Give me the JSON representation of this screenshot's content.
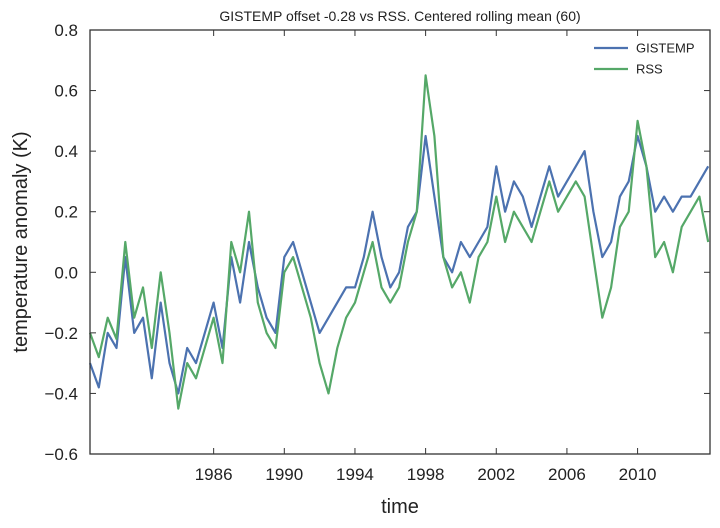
{
  "chart_data": {
    "type": "line",
    "title": "GISTEMP offset -0.28 vs RSS. Centered rolling mean (60)",
    "xlabel": "time",
    "ylabel": "temperature anomaly (K)",
    "xlim": [
      1979.0,
      2014.1
    ],
    "ylim": [
      -0.6,
      0.8
    ],
    "x_ticks": [
      1986,
      1990,
      1994,
      1998,
      2002,
      2006,
      2010
    ],
    "x_tick_labels": [
      "1986",
      "1990",
      "1994",
      "1998",
      "2002",
      "2006",
      "2010"
    ],
    "y_ticks": [
      -0.6,
      -0.4,
      -0.2,
      0.0,
      0.2,
      0.4,
      0.6,
      0.8
    ],
    "y_tick_labels": [
      "−0.6",
      "−0.4",
      "−0.2",
      "0.0",
      "0.2",
      "0.4",
      "0.6",
      "0.8"
    ],
    "grid": false,
    "legend_position": "top-right",
    "series": [
      {
        "name": "GISTEMP",
        "color": "#4c72b0",
        "x": [
          1979.0,
          1979.5,
          1980.0,
          1980.5,
          1981.0,
          1981.5,
          1982.0,
          1982.5,
          1983.0,
          1983.5,
          1984.0,
          1984.5,
          1985.0,
          1985.5,
          1986.0,
          1986.5,
          1987.0,
          1987.5,
          1988.0,
          1988.5,
          1989.0,
          1989.5,
          1990.0,
          1990.5,
          1991.0,
          1991.5,
          1992.0,
          1992.5,
          1993.0,
          1993.5,
          1994.0,
          1994.5,
          1995.0,
          1995.5,
          1996.0,
          1996.5,
          1997.0,
          1997.5,
          1998.0,
          1998.5,
          1999.0,
          1999.5,
          2000.0,
          2000.5,
          2001.0,
          2001.5,
          2002.0,
          2002.5,
          2003.0,
          2003.5,
          2004.0,
          2004.5,
          2005.0,
          2005.5,
          2006.0,
          2006.5,
          2007.0,
          2007.5,
          2008.0,
          2008.5,
          2009.0,
          2009.5,
          2010.0,
          2010.5,
          2011.0,
          2011.5,
          2012.0,
          2012.5,
          2013.0,
          2013.5,
          2014.0
        ],
        "values": [
          -0.3,
          -0.38,
          -0.2,
          -0.25,
          0.05,
          -0.2,
          -0.15,
          -0.35,
          -0.1,
          -0.3,
          -0.4,
          -0.25,
          -0.3,
          -0.2,
          -0.1,
          -0.25,
          0.05,
          -0.1,
          0.1,
          -0.05,
          -0.15,
          -0.2,
          0.05,
          0.1,
          0.0,
          -0.1,
          -0.2,
          -0.15,
          -0.1,
          -0.05,
          -0.05,
          0.05,
          0.2,
          0.05,
          -0.05,
          0.0,
          0.15,
          0.2,
          0.45,
          0.25,
          0.05,
          0.0,
          0.1,
          0.05,
          0.1,
          0.15,
          0.35,
          0.2,
          0.3,
          0.25,
          0.15,
          0.25,
          0.35,
          0.25,
          0.3,
          0.35,
          0.4,
          0.2,
          0.05,
          0.1,
          0.25,
          0.3,
          0.45,
          0.35,
          0.2,
          0.25,
          0.2,
          0.25,
          0.25,
          0.3,
          0.35
        ]
      },
      {
        "name": "RSS",
        "color": "#55a868",
        "x": [
          1979.0,
          1979.5,
          1980.0,
          1980.5,
          1981.0,
          1981.5,
          1982.0,
          1982.5,
          1983.0,
          1983.5,
          1984.0,
          1984.5,
          1985.0,
          1985.5,
          1986.0,
          1986.5,
          1987.0,
          1987.5,
          1988.0,
          1988.5,
          1989.0,
          1989.5,
          1990.0,
          1990.5,
          1991.0,
          1991.5,
          1992.0,
          1992.5,
          1993.0,
          1993.5,
          1994.0,
          1994.5,
          1995.0,
          1995.5,
          1996.0,
          1996.5,
          1997.0,
          1997.5,
          1998.0,
          1998.5,
          1999.0,
          1999.5,
          2000.0,
          2000.5,
          2001.0,
          2001.5,
          2002.0,
          2002.5,
          2003.0,
          2003.5,
          2004.0,
          2004.5,
          2005.0,
          2005.5,
          2006.0,
          2006.5,
          2007.0,
          2007.5,
          2008.0,
          2008.5,
          2009.0,
          2009.5,
          2010.0,
          2010.5,
          2011.0,
          2011.5,
          2012.0,
          2012.5,
          2013.0,
          2013.5,
          2014.0
        ],
        "values": [
          -0.2,
          -0.28,
          -0.15,
          -0.22,
          0.1,
          -0.15,
          -0.05,
          -0.25,
          0.0,
          -0.2,
          -0.45,
          -0.3,
          -0.35,
          -0.25,
          -0.15,
          -0.3,
          0.1,
          0.0,
          0.2,
          -0.1,
          -0.2,
          -0.25,
          0.0,
          0.05,
          -0.05,
          -0.15,
          -0.3,
          -0.4,
          -0.25,
          -0.15,
          -0.1,
          0.0,
          0.1,
          -0.05,
          -0.1,
          -0.05,
          0.1,
          0.2,
          0.65,
          0.45,
          0.05,
          -0.05,
          0.0,
          -0.1,
          0.05,
          0.1,
          0.25,
          0.1,
          0.2,
          0.15,
          0.1,
          0.2,
          0.3,
          0.2,
          0.25,
          0.3,
          0.25,
          0.05,
          -0.15,
          -0.05,
          0.15,
          0.2,
          0.5,
          0.35,
          0.05,
          0.1,
          0.0,
          0.15,
          0.2,
          0.25,
          0.1
        ]
      }
    ]
  }
}
